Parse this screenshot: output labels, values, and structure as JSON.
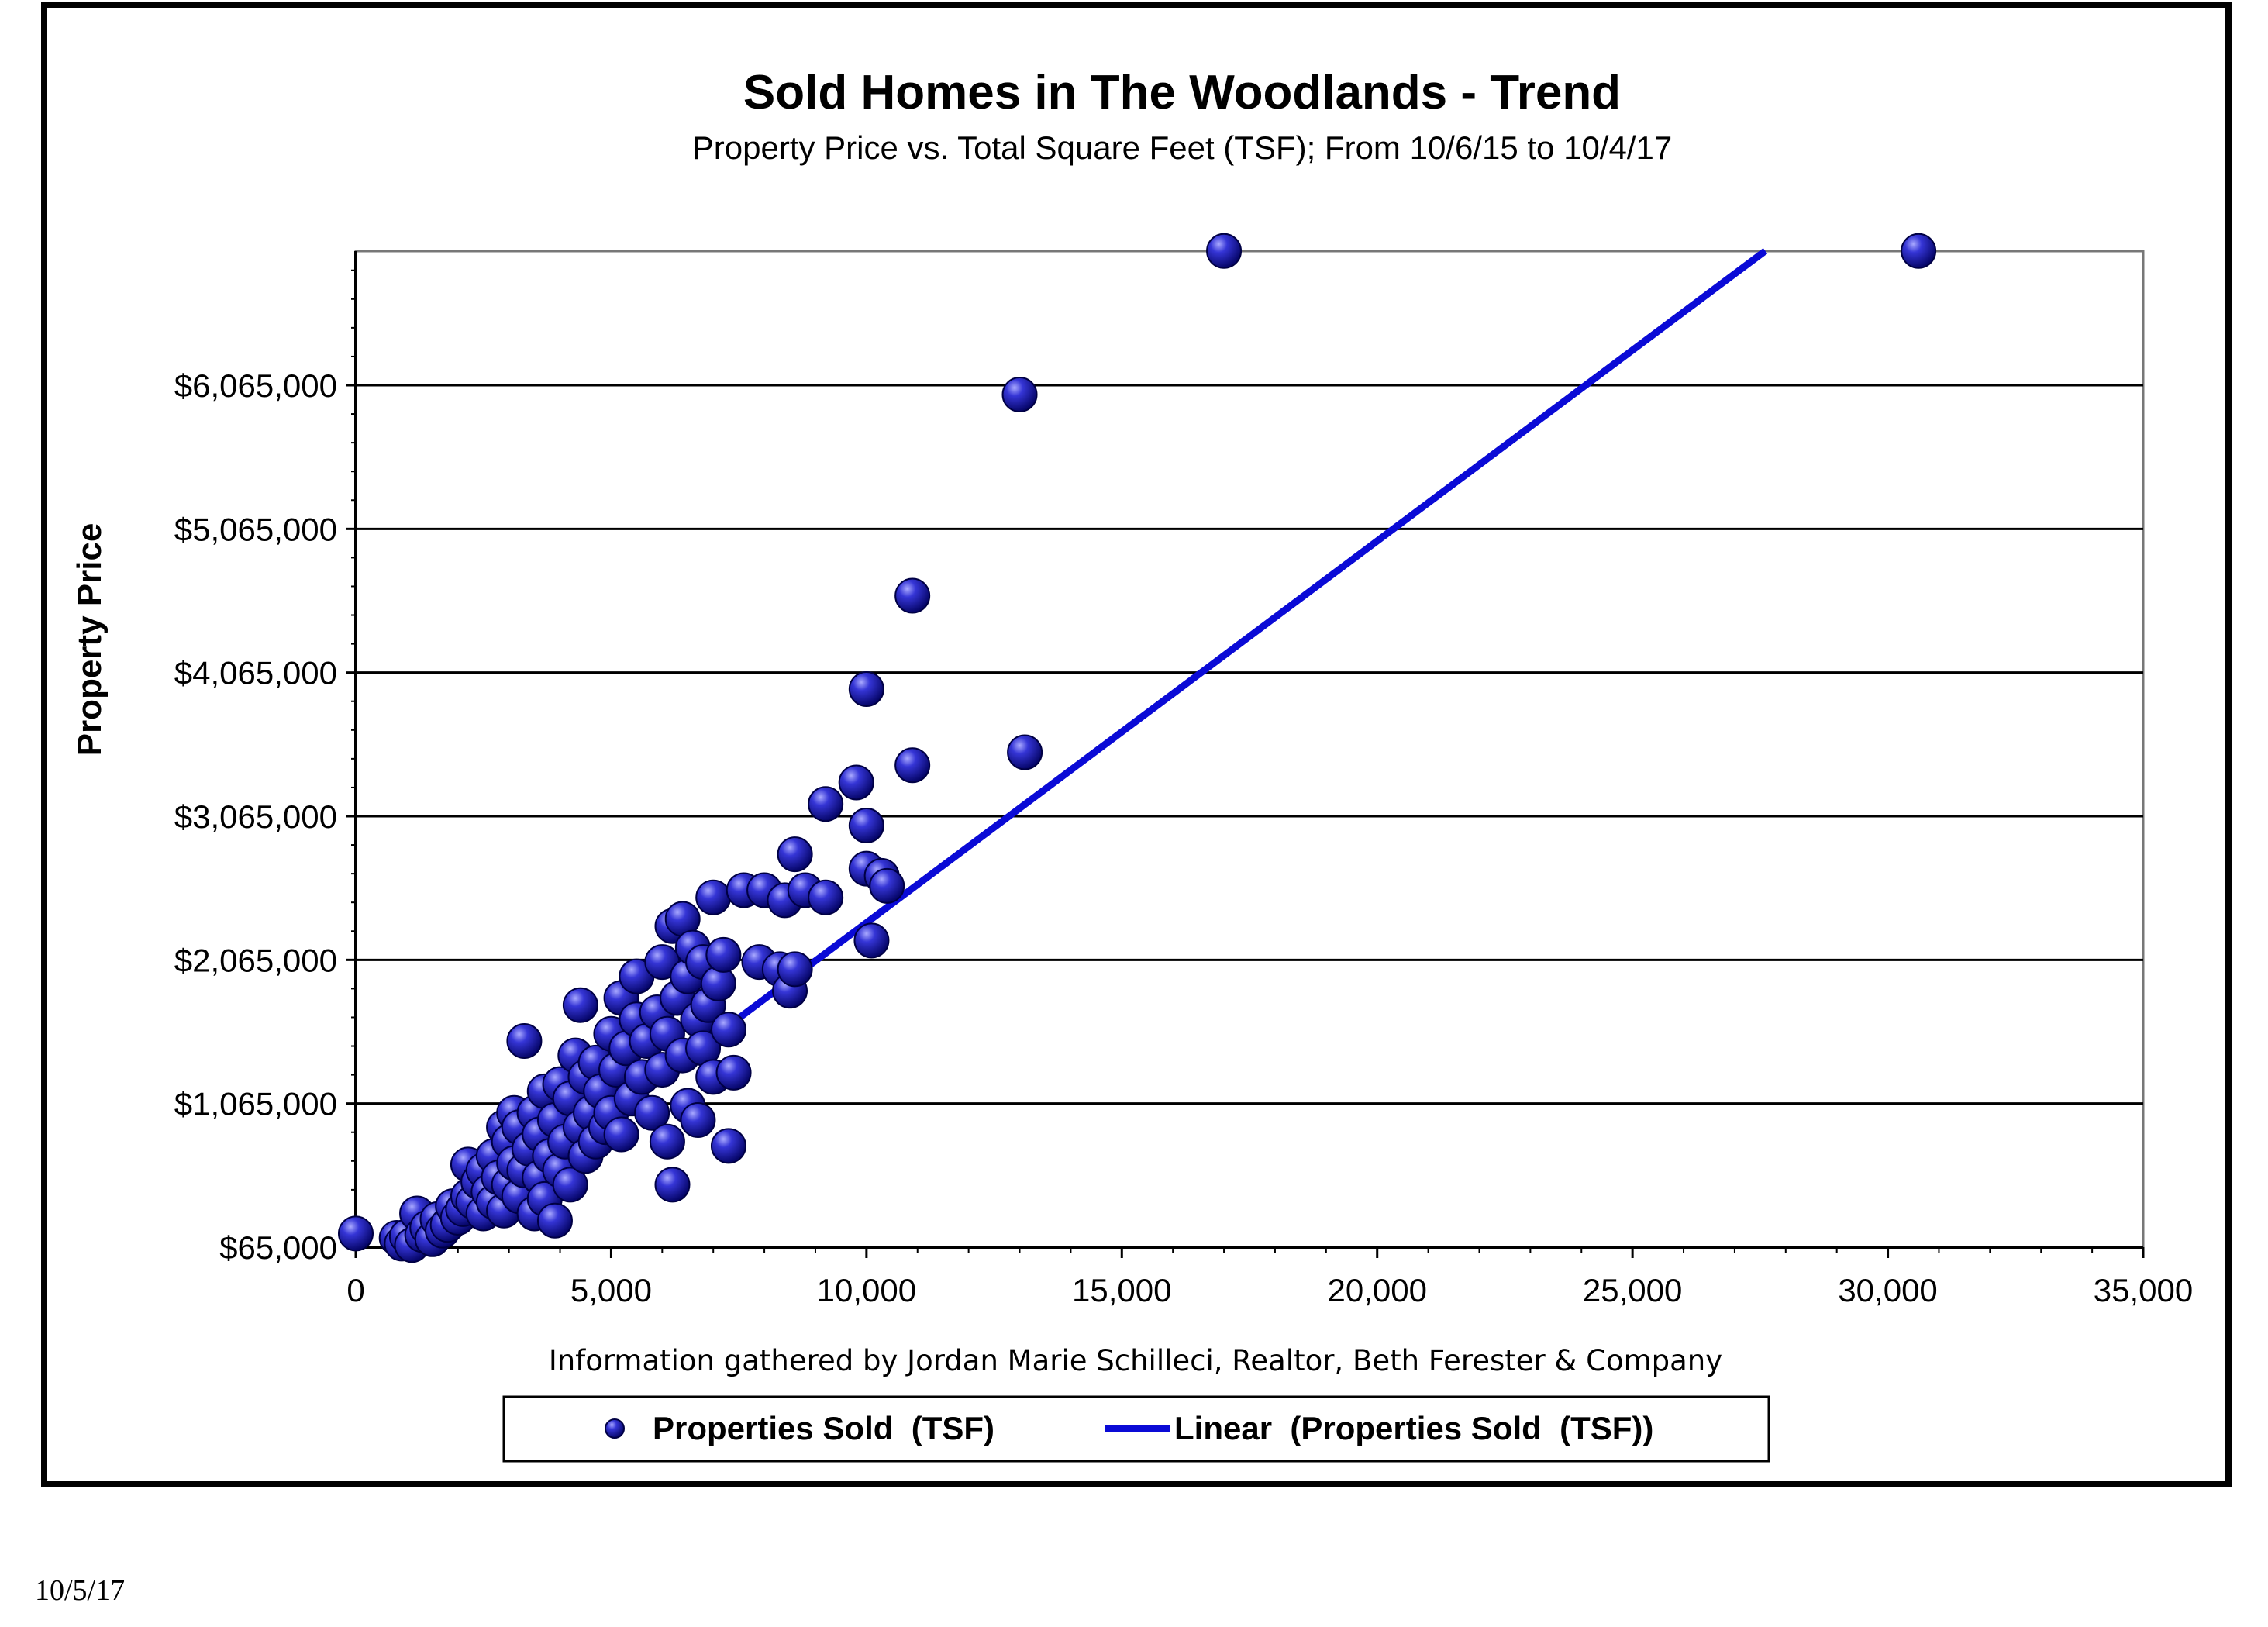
{
  "page": {
    "footer_date": "10/5/17"
  },
  "chart_data": {
    "type": "scatter",
    "title": "Sold Homes in The Woodlands - Trend",
    "subtitle": "Property Price vs. Total Square Feet (TSF); From 10/6/15 to 10/4/17",
    "xlabel": "",
    "ylabel": "Property Price",
    "note": "Information gathered by Jordan Marie Schilleci, Realtor, Beth Ferester & Company",
    "xlim": [
      0,
      35000
    ],
    "ylim": [
      65000,
      7000000
    ],
    "x_ticks": [
      0,
      5000,
      10000,
      15000,
      20000,
      25000,
      30000,
      35000
    ],
    "x_tick_labels": [
      "0",
      "5,000",
      "10,000",
      "15,000",
      "20,000",
      "25,000",
      "30,000",
      "35,000"
    ],
    "y_ticks": [
      65000,
      1065000,
      2065000,
      3065000,
      4065000,
      5065000,
      6065000
    ],
    "y_tick_labels": [
      "$65,000",
      "$1,065,000",
      "$2,065,000",
      "$3,065,000",
      "$4,065,000",
      "$5,065,000",
      "$6,065,000"
    ],
    "grid": "horizontal",
    "legend": {
      "placement": "bottom",
      "entries": [
        "Properties Sold  (TSF)",
        "Linear  (Properties Sold  (TSF))"
      ]
    },
    "colors": {
      "marker": "#1a1ab8",
      "marker_highlight": "#8f8ff2",
      "marker_edge": "#000044",
      "trend": "#0a0ad6",
      "grid": "#000000"
    },
    "series": [
      {
        "name": "Properties Sold  (TSF)",
        "kind": "scatter",
        "points": [
          [
            0,
            160000
          ],
          [
            800,
            130000
          ],
          [
            900,
            90000
          ],
          [
            1000,
            140000
          ],
          [
            1100,
            80000
          ],
          [
            1200,
            300000
          ],
          [
            1300,
            150000
          ],
          [
            1400,
            200000
          ],
          [
            1500,
            120000
          ],
          [
            1600,
            260000
          ],
          [
            1700,
            180000
          ],
          [
            1800,
            220000
          ],
          [
            1900,
            350000
          ],
          [
            2000,
            270000
          ],
          [
            2100,
            330000
          ],
          [
            2200,
            420000
          ],
          [
            2200,
            640000
          ],
          [
            2300,
            380000
          ],
          [
            2400,
            520000
          ],
          [
            2500,
            300000
          ],
          [
            2500,
            600000
          ],
          [
            2600,
            450000
          ],
          [
            2700,
            700000
          ],
          [
            2700,
            380000
          ],
          [
            2800,
            550000
          ],
          [
            2900,
            900000
          ],
          [
            2900,
            320000
          ],
          [
            3000,
            500000
          ],
          [
            3000,
            800000
          ],
          [
            3100,
            650000
          ],
          [
            3100,
            1000000
          ],
          [
            3200,
            420000
          ],
          [
            3200,
            900000
          ],
          [
            3300,
            1500000
          ],
          [
            3300,
            600000
          ],
          [
            3400,
            750000
          ],
          [
            3500,
            1000000
          ],
          [
            3500,
            300000
          ],
          [
            3600,
            850000
          ],
          [
            3600,
            550000
          ],
          [
            3700,
            1150000
          ],
          [
            3700,
            400000
          ],
          [
            3800,
            700000
          ],
          [
            3900,
            950000
          ],
          [
            3900,
            250000
          ],
          [
            4000,
            1200000
          ],
          [
            4000,
            600000
          ],
          [
            4100,
            800000
          ],
          [
            4200,
            1100000
          ],
          [
            4200,
            500000
          ],
          [
            4300,
            1400000
          ],
          [
            4400,
            1750000
          ],
          [
            4400,
            900000
          ],
          [
            4500,
            1250000
          ],
          [
            4500,
            700000
          ],
          [
            4600,
            1000000
          ],
          [
            4700,
            1350000
          ],
          [
            4700,
            800000
          ],
          [
            4800,
            1150000
          ],
          [
            4900,
            900000
          ],
          [
            5000,
            1550000
          ],
          [
            5000,
            1000000
          ],
          [
            5100,
            1300000
          ],
          [
            5200,
            1800000
          ],
          [
            5200,
            850000
          ],
          [
            5300,
            1450000
          ],
          [
            5400,
            1100000
          ],
          [
            5500,
            1950000
          ],
          [
            5500,
            1650000
          ],
          [
            5600,
            1250000
          ],
          [
            5700,
            1500000
          ],
          [
            5800,
            1000000
          ],
          [
            5900,
            1700000
          ],
          [
            6000,
            2050000
          ],
          [
            6000,
            1300000
          ],
          [
            6100,
            1550000
          ],
          [
            6100,
            800000
          ],
          [
            6200,
            2300000
          ],
          [
            6200,
            500000
          ],
          [
            6300,
            1800000
          ],
          [
            6400,
            2350000
          ],
          [
            6400,
            1400000
          ],
          [
            6500,
            1950000
          ],
          [
            6500,
            1050000
          ],
          [
            6600,
            2150000
          ],
          [
            6700,
            1650000
          ],
          [
            6700,
            950000
          ],
          [
            6800,
            2050000
          ],
          [
            6800,
            1450000
          ],
          [
            6900,
            1750000
          ],
          [
            7000,
            2500000
          ],
          [
            7000,
            1250000
          ],
          [
            7100,
            1900000
          ],
          [
            7200,
            2100000
          ],
          [
            7300,
            1580000
          ],
          [
            7300,
            770000
          ],
          [
            7400,
            1280000
          ],
          [
            7600,
            2550000
          ],
          [
            7900,
            2050000
          ],
          [
            8000,
            2550000
          ],
          [
            8300,
            2000000
          ],
          [
            8400,
            2480000
          ],
          [
            8500,
            1850000
          ],
          [
            8600,
            2000000
          ],
          [
            8600,
            2800000
          ],
          [
            8800,
            2550000
          ],
          [
            9200,
            2500000
          ],
          [
            9200,
            3150000
          ],
          [
            9800,
            3300000
          ],
          [
            10000,
            3000000
          ],
          [
            10000,
            2700000
          ],
          [
            10000,
            3950000
          ],
          [
            10100,
            2200000
          ],
          [
            10300,
            2650000
          ],
          [
            10400,
            2580000
          ],
          [
            10900,
            3420000
          ],
          [
            10900,
            4600000
          ],
          [
            13000,
            6000000
          ],
          [
            13100,
            3510000
          ],
          [
            17000,
            7000000
          ],
          [
            30600,
            7000000
          ]
        ]
      },
      {
        "name": "Linear  (Properties Sold  (TSF))",
        "kind": "linear-trend",
        "x": [
          1500,
          27600
        ],
        "y": [
          65000,
          7000000
        ]
      }
    ]
  }
}
